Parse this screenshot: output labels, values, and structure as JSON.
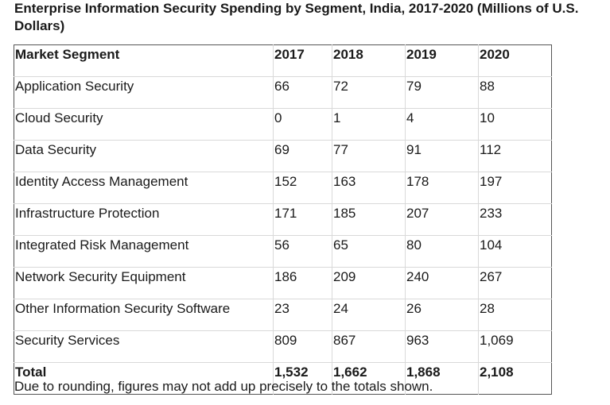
{
  "title": "Enterprise Information Security Spending by Segment, India, 2017-2020 (Millions of U.S. Dollars)",
  "table": {
    "headers": [
      "Market Segment",
      "2017",
      "2018",
      "2019",
      "2020"
    ],
    "rows": [
      [
        "Application Security",
        "66",
        "72",
        "79",
        "88"
      ],
      [
        "Cloud Security",
        "0",
        "1",
        "4",
        "10"
      ],
      [
        "Data Security",
        "69",
        "77",
        "91",
        "112"
      ],
      [
        "Identity Access Management",
        "152",
        "163",
        "178",
        "197"
      ],
      [
        "Infrastructure Protection",
        "171",
        "185",
        "207",
        "233"
      ],
      [
        "Integrated Risk Management",
        "56",
        "65",
        "80",
        "104"
      ],
      [
        "Network Security Equipment",
        "186",
        "209",
        "240",
        "267"
      ],
      [
        "Other Information Security Software",
        "23",
        "24",
        "26",
        "28"
      ],
      [
        "Security Services",
        "809",
        "867",
        "963",
        "1,069"
      ],
      [
        "Total",
        "1,532",
        "1,662",
        "1,868",
        "2,108"
      ]
    ]
  },
  "note": "Due to rounding, figures may not add up precisely to the totals shown."
}
